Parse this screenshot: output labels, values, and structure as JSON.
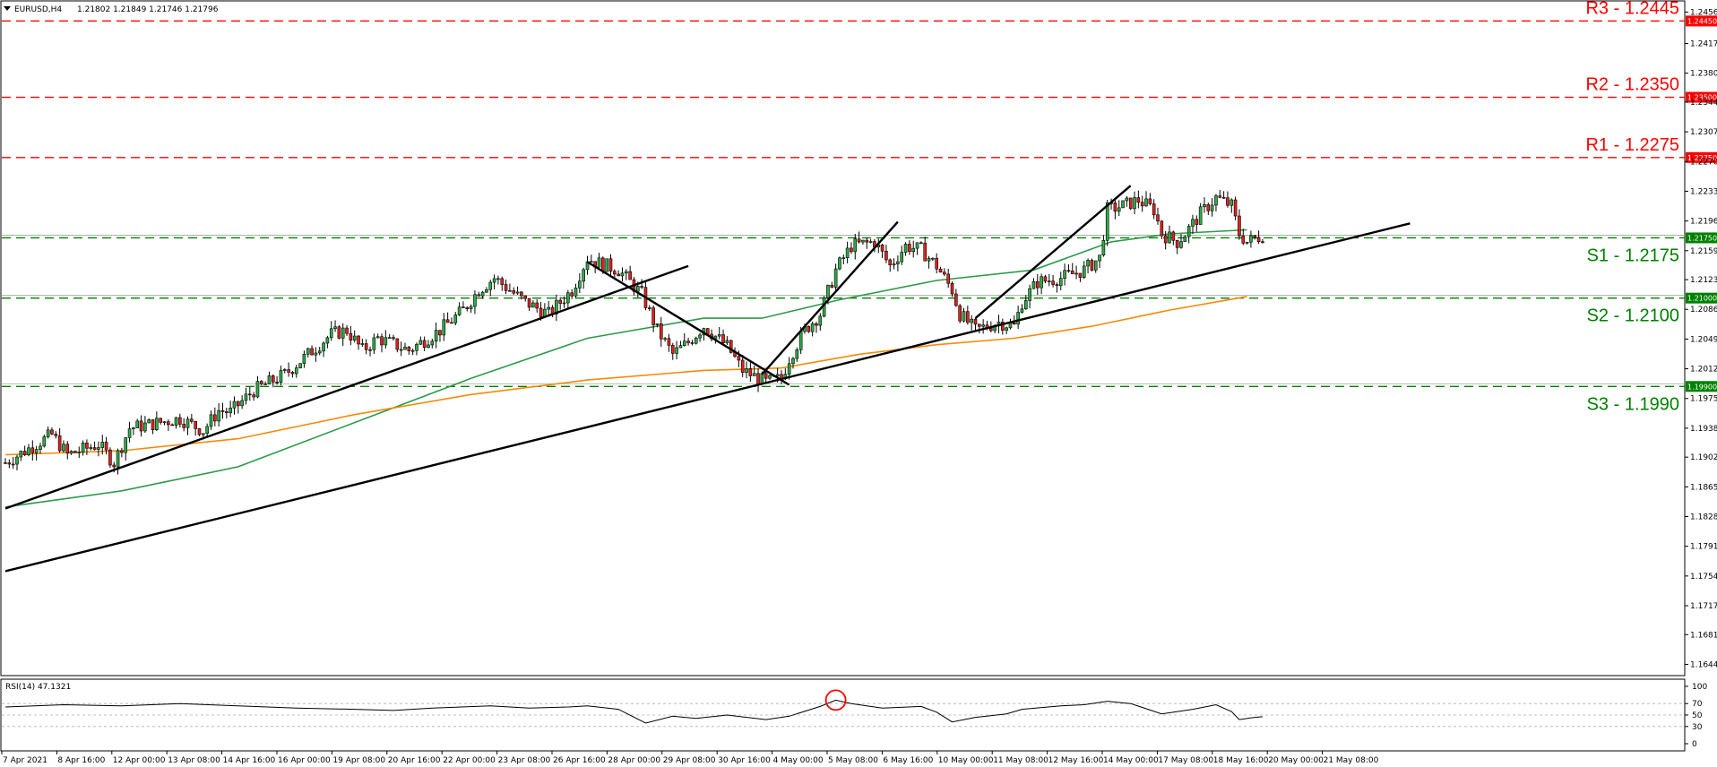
{
  "header": {
    "symbol": "EURUSD,H4",
    "ohlc": "1.21802 1.21849 1.21746 1.21796"
  },
  "chart_data": {
    "type": "candlestick",
    "price_axis": {
      "range": [
        1.163,
        1.247
      ],
      "ticks": [
        "1.24560",
        "1.24170",
        "1.23800",
        "1.23440",
        "1.23070",
        "1.22700",
        "1.22330",
        "1.21960",
        "1.21590",
        "1.21230",
        "1.20860",
        "1.20490",
        "1.20120",
        "1.19750",
        "1.19380",
        "1.19020",
        "1.18650",
        "1.18280",
        "1.17910",
        "1.17540",
        "1.17170",
        "1.16810",
        "1.16440"
      ]
    },
    "time_labels": [
      "7 Apr 2021",
      "8 Apr 16:00",
      "12 Apr 00:00",
      "13 Apr 08:00",
      "14 Apr 16:00",
      "16 Apr 00:00",
      "19 Apr 08:00",
      "20 Apr 16:00",
      "22 Apr 00:00",
      "23 Apr 08:00",
      "26 Apr 16:00",
      "28 Apr 00:00",
      "29 Apr 08:00",
      "30 Apr 16:00",
      "4 May 00:00",
      "5 May 08:00",
      "6 May 16:00",
      "10 May 00:00",
      "11 May 08:00",
      "12 May 16:00",
      "14 May 00:00",
      "17 May 08:00",
      "18 May 16:00",
      "20 May 00:00",
      "21 May 08:00"
    ],
    "levels": [
      {
        "label": "R3 - 1.2445",
        "tag": "1.24450",
        "value": 1.2445,
        "kind": "resistance",
        "color": "#ff0000"
      },
      {
        "label": "R2 - 1.2350",
        "tag": "1.23500",
        "value": 1.235,
        "kind": "resistance",
        "color": "#ff0000"
      },
      {
        "label": "R1 - 1.2275",
        "tag": "1.22750",
        "value": 1.2275,
        "kind": "resistance",
        "color": "#ff0000"
      },
      {
        "label": "S1 - 1.2175",
        "tag": "1.21750",
        "value": 1.2175,
        "kind": "support",
        "color": "#008000"
      },
      {
        "label": "S2 - 1.2100",
        "tag": "1.21000",
        "value": 1.21,
        "kind": "support",
        "color": "#008000"
      },
      {
        "label": "S3 - 1.1990",
        "tag": "1.19900",
        "value": 1.199,
        "kind": "support",
        "color": "#008000"
      }
    ],
    "price_path": [
      [
        0,
        1.1895
      ],
      [
        12,
        1.193
      ],
      [
        16,
        1.1905
      ],
      [
        24,
        1.1918
      ],
      [
        28,
        1.1895
      ],
      [
        32,
        1.1938
      ],
      [
        45,
        1.195
      ],
      [
        51,
        1.1935
      ],
      [
        55,
        1.196
      ],
      [
        58,
        1.1958
      ],
      [
        64,
        1.1985
      ],
      [
        72,
        1.2005
      ],
      [
        78,
        1.203
      ],
      [
        84,
        1.2055
      ],
      [
        88,
        1.206
      ],
      [
        92,
        1.2035
      ],
      [
        96,
        1.205
      ],
      [
        104,
        1.2035
      ],
      [
        112,
        1.206
      ],
      [
        118,
        1.2085
      ],
      [
        122,
        1.211
      ],
      [
        126,
        1.2125
      ],
      [
        130,
        1.211
      ],
      [
        134,
        1.2095
      ],
      [
        140,
        1.208
      ],
      [
        146,
        1.211
      ],
      [
        150,
        1.215
      ],
      [
        152,
        1.2145
      ],
      [
        158,
        1.2135
      ],
      [
        164,
        1.2105
      ],
      [
        168,
        1.206
      ],
      [
        172,
        1.203
      ],
      [
        176,
        1.2045
      ],
      [
        180,
        1.2065
      ],
      [
        186,
        1.204
      ],
      [
        190,
        1.201
      ],
      [
        196,
        1.1995
      ],
      [
        200,
        1.2
      ],
      [
        202,
        1.2025
      ],
      [
        206,
        1.206
      ],
      [
        210,
        1.208
      ],
      [
        214,
        1.2135
      ],
      [
        218,
        1.2165
      ],
      [
        224,
        1.217
      ],
      [
        228,
        1.214
      ],
      [
        232,
        1.2165
      ],
      [
        236,
        1.216
      ],
      [
        240,
        1.214
      ],
      [
        244,
        1.211
      ],
      [
        246,
        1.208
      ],
      [
        250,
        1.206
      ],
      [
        256,
        1.207
      ],
      [
        260,
        1.2065
      ],
      [
        262,
        1.2095
      ],
      [
        266,
        1.212
      ],
      [
        272,
        1.2125
      ],
      [
        278,
        1.2135
      ],
      [
        282,
        1.215
      ],
      [
        284,
        1.221
      ],
      [
        288,
        1.2215
      ],
      [
        292,
        1.2222
      ],
      [
        296,
        1.221
      ],
      [
        298,
        1.218
      ],
      [
        302,
        1.217
      ],
      [
        304,
        1.218
      ],
      [
        308,
        1.2205
      ],
      [
        312,
        1.2225
      ],
      [
        316,
        1.2215
      ],
      [
        318,
        1.218
      ],
      [
        320,
        1.217
      ],
      [
        324,
        1.2178
      ]
    ],
    "moving_average_1": {
      "color": "#2e9a4b",
      "path": [
        [
          0,
          1.184
        ],
        [
          30,
          1.186
        ],
        [
          60,
          1.189
        ],
        [
          90,
          1.1945
        ],
        [
          120,
          1.2
        ],
        [
          150,
          1.205
        ],
        [
          180,
          1.2075
        ],
        [
          195,
          1.2075
        ],
        [
          215,
          1.2098
        ],
        [
          240,
          1.2122
        ],
        [
          265,
          1.2135
        ],
        [
          285,
          1.217
        ],
        [
          300,
          1.218
        ],
        [
          320,
          1.2185
        ]
      ]
    },
    "moving_average_2": {
      "color": "#f58a07",
      "path": [
        [
          0,
          1.1905
        ],
        [
          30,
          1.191
        ],
        [
          60,
          1.1925
        ],
        [
          90,
          1.1955
        ],
        [
          120,
          1.198
        ],
        [
          150,
          1.1998
        ],
        [
          180,
          1.201
        ],
        [
          200,
          1.2013
        ],
        [
          220,
          1.203
        ],
        [
          240,
          1.2042
        ],
        [
          260,
          1.205
        ],
        [
          280,
          1.2065
        ],
        [
          300,
          1.2085
        ],
        [
          320,
          1.2102
        ]
      ]
    },
    "trendlines": [
      {
        "from": [
          0,
          1.1838
        ],
        "to": [
          176,
          1.214
        ]
      },
      {
        "from": [
          0,
          1.176
        ],
        "to": [
          362,
          1.2193
        ]
      },
      {
        "from": [
          150,
          1.2145
        ],
        "to": [
          202,
          1.1992
        ]
      },
      {
        "from": [
          195,
          1.2005
        ],
        "to": [
          230,
          1.2195
        ]
      },
      {
        "from": [
          250,
          1.2075
        ],
        "to": [
          290,
          1.224
        ]
      }
    ],
    "rsi": {
      "label": "RSI(14) 47.1321",
      "ticks": [
        "100",
        "70",
        "50",
        "30",
        "0"
      ],
      "levels": [
        70,
        50,
        30
      ],
      "path": [
        [
          0,
          64
        ],
        [
          15,
          68
        ],
        [
          30,
          66
        ],
        [
          45,
          70
        ],
        [
          60,
          66
        ],
        [
          75,
          62
        ],
        [
          90,
          60
        ],
        [
          100,
          58
        ],
        [
          110,
          62
        ],
        [
          125,
          66
        ],
        [
          135,
          62
        ],
        [
          145,
          64
        ],
        [
          150,
          66
        ],
        [
          158,
          60
        ],
        [
          165,
          36
        ],
        [
          172,
          48
        ],
        [
          178,
          44
        ],
        [
          186,
          50
        ],
        [
          196,
          42
        ],
        [
          202,
          48
        ],
        [
          210,
          65
        ],
        [
          214,
          76
        ],
        [
          218,
          70
        ],
        [
          226,
          62
        ],
        [
          236,
          65
        ],
        [
          240,
          55
        ],
        [
          244,
          38
        ],
        [
          250,
          46
        ],
        [
          258,
          52
        ],
        [
          262,
          60
        ],
        [
          272,
          66
        ],
        [
          278,
          68
        ],
        [
          284,
          74
        ],
        [
          290,
          70
        ],
        [
          298,
          52
        ],
        [
          306,
          60
        ],
        [
          312,
          68
        ],
        [
          316,
          56
        ],
        [
          318,
          42
        ],
        [
          322,
          46
        ],
        [
          324,
          47
        ]
      ],
      "marker": {
        "x": 214,
        "value": 76
      }
    }
  }
}
